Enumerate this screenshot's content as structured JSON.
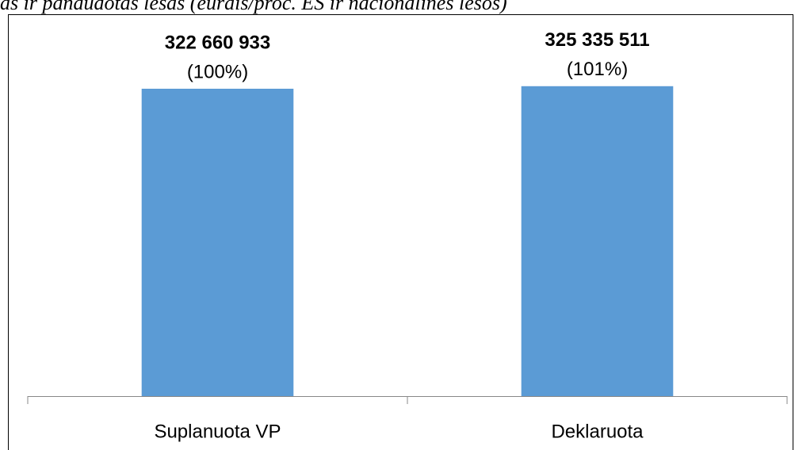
{
  "chart_data": {
    "type": "bar",
    "title": "as ir panaudotas lėšas (eurais/proc. ES ir nacionalinės lėšos)",
    "categories": [
      "Suplanuota VP",
      "Deklaruota"
    ],
    "values": [
      322660933,
      325335511
    ],
    "value_labels": [
      "322 660 933",
      "325 335 511"
    ],
    "shares": [
      100,
      101
    ],
    "share_labels": [
      "(100%)",
      "(101%)"
    ],
    "color": "#5b9bd5",
    "ylim": [
      0,
      400000000
    ]
  }
}
